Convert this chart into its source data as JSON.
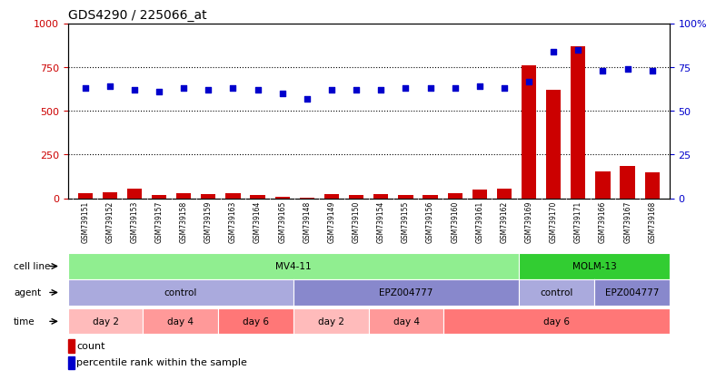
{
  "title": "GDS4290 / 225066_at",
  "samples": [
    "GSM739151",
    "GSM739152",
    "GSM739153",
    "GSM739157",
    "GSM739158",
    "GSM739159",
    "GSM739163",
    "GSM739164",
    "GSM739165",
    "GSM739148",
    "GSM739149",
    "GSM739150",
    "GSM739154",
    "GSM739155",
    "GSM739156",
    "GSM739160",
    "GSM739161",
    "GSM739162",
    "GSM739169",
    "GSM739170",
    "GSM739171",
    "GSM739166",
    "GSM739167",
    "GSM739168"
  ],
  "counts": [
    30,
    35,
    55,
    20,
    30,
    25,
    30,
    20,
    10,
    5,
    25,
    20,
    25,
    20,
    20,
    30,
    50,
    55,
    760,
    620,
    870,
    155,
    185,
    150
  ],
  "percentiles": [
    63,
    64,
    62,
    61,
    63,
    62,
    63,
    62,
    60,
    57,
    62,
    62,
    62,
    63,
    63,
    63,
    64,
    63,
    67,
    84,
    85,
    73,
    74,
    73
  ],
  "cell_line_groups": [
    {
      "label": "MV4-11",
      "start": 0,
      "end": 18,
      "color": "#90EE90"
    },
    {
      "label": "MOLM-13",
      "start": 18,
      "end": 24,
      "color": "#32CD32"
    }
  ],
  "agent_groups": [
    {
      "label": "control",
      "start": 0,
      "end": 9,
      "color": "#AAAADD"
    },
    {
      "label": "EPZ004777",
      "start": 9,
      "end": 18,
      "color": "#8888CC"
    },
    {
      "label": "control",
      "start": 18,
      "end": 21,
      "color": "#AAAADD"
    },
    {
      "label": "EPZ004777",
      "start": 21,
      "end": 24,
      "color": "#8888CC"
    }
  ],
  "time_groups": [
    {
      "label": "day 2",
      "start": 0,
      "end": 3,
      "color": "#FFBBBB"
    },
    {
      "label": "day 4",
      "start": 3,
      "end": 6,
      "color": "#FF9999"
    },
    {
      "label": "day 6",
      "start": 6,
      "end": 9,
      "color": "#FF7777"
    },
    {
      "label": "day 2",
      "start": 9,
      "end": 12,
      "color": "#FFBBBB"
    },
    {
      "label": "day 4",
      "start": 12,
      "end": 15,
      "color": "#FF9999"
    },
    {
      "label": "day 6",
      "start": 15,
      "end": 24,
      "color": "#FF7777"
    }
  ],
  "bar_color": "#CC0000",
  "dot_color": "#0000CC",
  "ylim_left": [
    0,
    1000
  ],
  "ylim_right": [
    0,
    100
  ],
  "yticks_left": [
    0,
    250,
    500,
    750,
    1000
  ],
  "yticks_right": [
    0,
    25,
    50,
    75,
    100
  ],
  "ytick_labels_right": [
    "0",
    "25",
    "50",
    "75",
    "100%"
  ],
  "background_color": "#FFFFFF",
  "legend_count_label": "count",
  "legend_percentile_label": "percentile rank within the sample"
}
